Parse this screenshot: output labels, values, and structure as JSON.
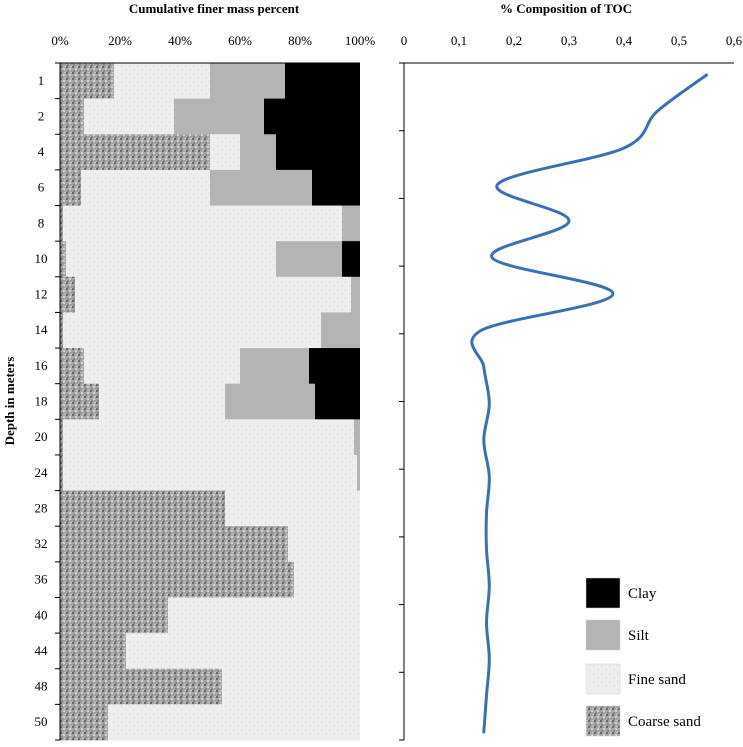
{
  "chart_data": [
    {
      "type": "bar",
      "orientation": "horizontal-stacked",
      "title": "Cumulative finer mass percent",
      "ylabel": "Depth in meters",
      "categories": [
        "1",
        "2",
        "4",
        "6",
        "8",
        "10",
        "12",
        "14",
        "16",
        "18",
        "20",
        "24",
        "28",
        "32",
        "36",
        "40",
        "44",
        "48",
        "50"
      ],
      "xticks": [
        "0%",
        "20%",
        "40%",
        "60%",
        "80%",
        "100%"
      ],
      "xlim": [
        0,
        100
      ],
      "series": [
        {
          "name": "Coarse sand",
          "pattern": "coarse",
          "values": [
            18,
            8,
            50,
            7,
            1,
            2,
            5,
            1,
            8,
            13,
            1,
            1,
            55,
            76,
            78,
            36,
            22,
            54,
            16
          ]
        },
        {
          "name": "Fine sand",
          "pattern": "fine",
          "values": [
            32,
            30,
            10,
            43,
            93,
            70,
            92,
            86,
            52,
            42,
            97,
            98,
            45,
            24,
            22,
            64,
            78,
            46,
            84
          ]
        },
        {
          "name": "Silt",
          "pattern": "silt",
          "values": [
            25,
            30,
            12,
            34,
            6,
            22,
            3,
            13,
            23,
            30,
            2,
            1,
            0,
            0,
            0,
            0,
            0,
            0,
            0
          ]
        },
        {
          "name": "Clay",
          "pattern": "clay",
          "values": [
            25,
            32,
            28,
            16,
            0,
            6,
            0,
            0,
            17,
            15,
            0,
            0,
            0,
            0,
            0,
            0,
            0,
            0,
            0
          ]
        }
      ]
    },
    {
      "type": "line",
      "title": "% Composition of TOC",
      "xticks": [
        "0",
        "0,1",
        "0,2",
        "0,3",
        "0,4",
        "0,5",
        "0,6"
      ],
      "xlim": [
        0,
        0.6
      ],
      "categories": [
        "1",
        "2",
        "4",
        "6",
        "8",
        "10",
        "12",
        "14",
        "16",
        "18",
        "20",
        "24",
        "28",
        "32",
        "36",
        "40",
        "44",
        "48",
        "50"
      ],
      "series": [
        {
          "name": "TOC",
          "values": [
            0.55,
            0.46,
            0.4,
            0.17,
            0.3,
            0.16,
            0.38,
            0.14,
            0.145,
            0.155,
            0.145,
            0.155,
            0.15,
            0.15,
            0.155,
            0.15,
            0.155,
            0.15,
            0.145
          ]
        }
      ]
    }
  ],
  "legend": [
    {
      "label": "Clay",
      "pattern": "clay"
    },
    {
      "label": "Silt",
      "pattern": "silt"
    },
    {
      "label": "Fine sand",
      "pattern": "fine"
    },
    {
      "label": "Coarse sand",
      "pattern": "coarse"
    }
  ],
  "colors": {
    "clay": "#000000",
    "silt": "#b4b4b4",
    "fine": "#ececec",
    "coarse": "#9a9a9a",
    "line": "#3b6fb6",
    "axis": "#000000"
  }
}
